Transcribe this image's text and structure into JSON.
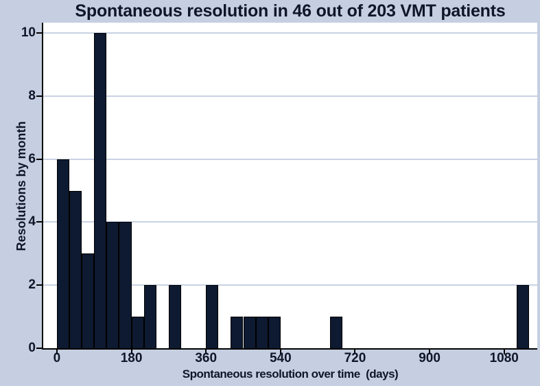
{
  "chart_data": {
    "type": "bar",
    "subtype": "histogram",
    "title": "Spontaneous resolution in 46 out of 203 VMT patients",
    "xlabel": "Spontaneous resolution over time  (days)",
    "ylabel": "Resolutions by month",
    "x_ticks": [
      0,
      180,
      360,
      540,
      720,
      900,
      1080
    ],
    "y_ticks": [
      0,
      2,
      4,
      6,
      8,
      10
    ],
    "xlim": [
      -33,
      1160
    ],
    "ylim": [
      0,
      10.33
    ],
    "grid": "horizontal gridlines only, no vertical gridlines",
    "legend": "none",
    "bin_width_days": 30,
    "bins": [
      {
        "start_day": 0,
        "count": 6
      },
      {
        "start_day": 30,
        "count": 5
      },
      {
        "start_day": 60,
        "count": 3
      },
      {
        "start_day": 90,
        "count": 10
      },
      {
        "start_day": 120,
        "count": 4
      },
      {
        "start_day": 150,
        "count": 4
      },
      {
        "start_day": 180,
        "count": 1
      },
      {
        "start_day": 210,
        "count": 2
      },
      {
        "start_day": 270,
        "count": 2
      },
      {
        "start_day": 360,
        "count": 2
      },
      {
        "start_day": 420,
        "count": 1
      },
      {
        "start_day": 450,
        "count": 1
      },
      {
        "start_day": 480,
        "count": 1
      },
      {
        "start_day": 510,
        "count": 1
      },
      {
        "start_day": 660,
        "count": 1
      },
      {
        "start_day": 1110,
        "count": 2
      }
    ],
    "colors": {
      "background": "#c5cfe1",
      "plot_background": "#ffffff",
      "bar_fill": "#0d1a31",
      "bar_border": "#000000",
      "gridline": "#c8d2e4",
      "axis": "#000000",
      "text": "#0f1628"
    }
  }
}
